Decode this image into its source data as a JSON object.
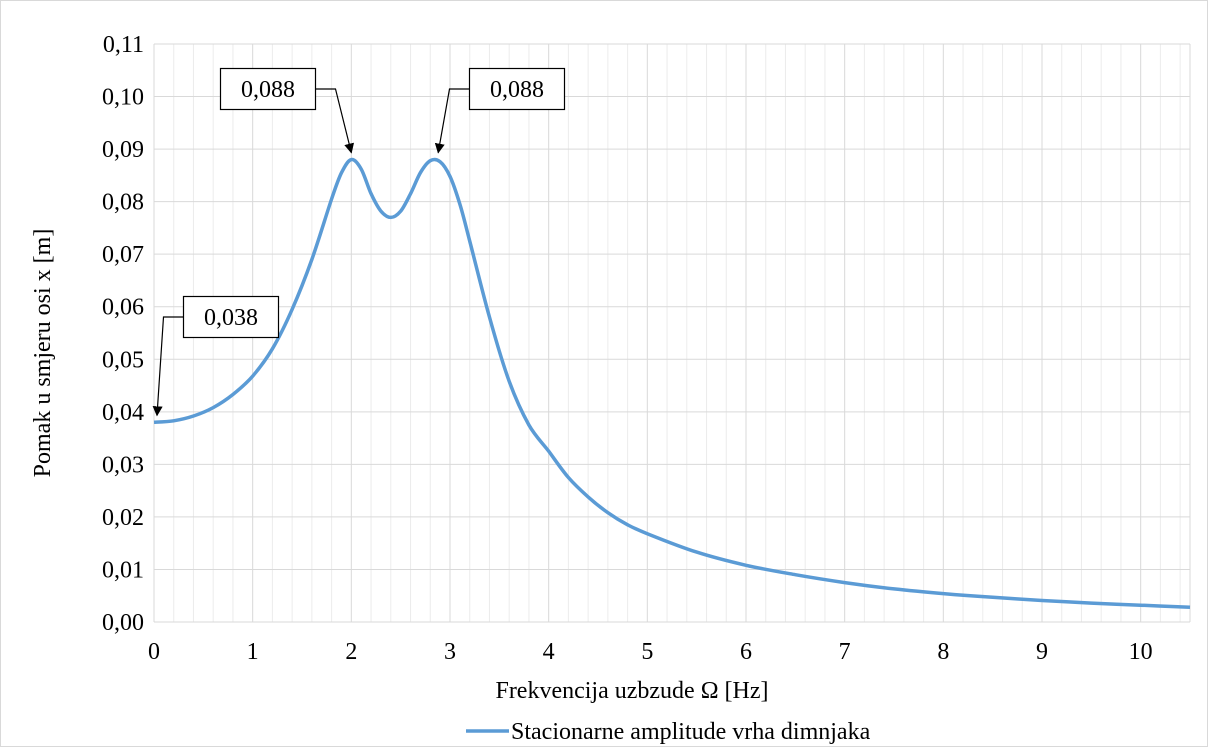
{
  "chart_data": {
    "type": "line",
    "xlabel": "Frekvencija uzbzude Ω [Hz]",
    "ylabel": "Pomak u smjeru osi x [m]",
    "xlim": [
      0,
      10.5
    ],
    "ylim": [
      0,
      0.11
    ],
    "x_ticks": [
      0,
      1,
      2,
      3,
      4,
      5,
      6,
      7,
      8,
      9,
      10
    ],
    "x_tick_labels": [
      "0",
      "1",
      "2",
      "3",
      "4",
      "5",
      "6",
      "7",
      "8",
      "9",
      "10"
    ],
    "y_ticks": [
      0,
      0.01,
      0.02,
      0.03,
      0.04,
      0.05,
      0.06,
      0.07,
      0.08,
      0.09,
      0.1,
      0.11
    ],
    "y_tick_labels": [
      "0,00",
      "0,01",
      "0,02",
      "0,03",
      "0,04",
      "0,05",
      "0,06",
      "0,07",
      "0,08",
      "0,09",
      "0,10",
      "0,11"
    ],
    "grid": {
      "major": true,
      "minor_x": true,
      "minor_x_step": 0.2
    },
    "legend_position": "bottom-center",
    "series": [
      {
        "name": "Stacionarne amplitude vrha dimnjaka",
        "color": "#5b9bd5",
        "x": [
          0,
          0.2,
          0.4,
          0.6,
          0.8,
          1.0,
          1.2,
          1.4,
          1.6,
          1.8,
          1.9,
          2.0,
          2.1,
          2.2,
          2.3,
          2.4,
          2.5,
          2.6,
          2.7,
          2.8,
          2.9,
          3.0,
          3.1,
          3.2,
          3.4,
          3.6,
          3.8,
          4.0,
          4.2,
          4.4,
          4.6,
          4.8,
          5.0,
          5.5,
          6.0,
          6.5,
          7.0,
          7.5,
          8.0,
          8.5,
          9.0,
          9.5,
          10.0,
          10.5
        ],
        "y": [
          0.038,
          0.0383,
          0.0392,
          0.0408,
          0.0433,
          0.0468,
          0.052,
          0.0595,
          0.069,
          0.0805,
          0.0855,
          0.088,
          0.0862,
          0.0815,
          0.0782,
          0.077,
          0.0782,
          0.0815,
          0.0855,
          0.0878,
          0.0876,
          0.0848,
          0.0795,
          0.0725,
          0.058,
          0.0458,
          0.0375,
          0.0325,
          0.0275,
          0.0238,
          0.0208,
          0.0185,
          0.0168,
          0.0133,
          0.0108,
          0.009,
          0.0075,
          0.0063,
          0.0054,
          0.0047,
          0.0041,
          0.0036,
          0.0032,
          0.0028
        ]
      }
    ],
    "annotations": [
      {
        "text": "0,038",
        "x": 0.0,
        "y": 0.038
      },
      {
        "text": "0,088",
        "x": 2.0,
        "y": 0.088
      },
      {
        "text": "0,088",
        "x": 2.85,
        "y": 0.088
      }
    ]
  }
}
